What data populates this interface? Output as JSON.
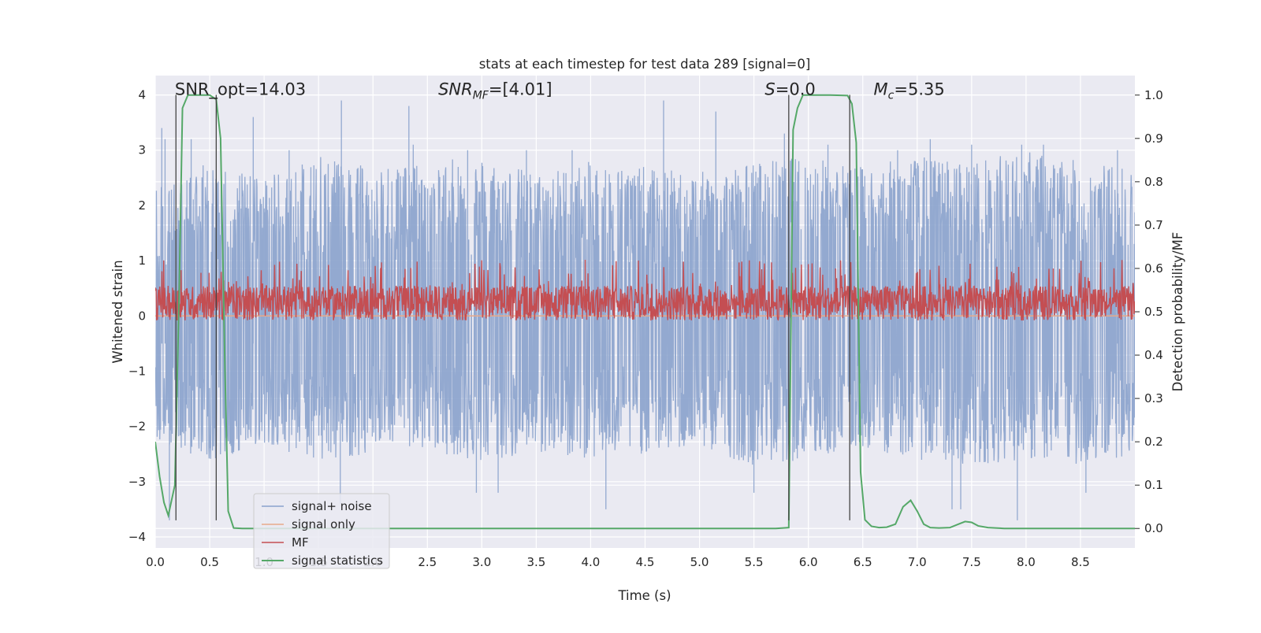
{
  "chart_data": {
    "type": "line",
    "title": "stats at each timestep for test data 289 [signal=0]",
    "xlabel": "Time (s)",
    "ylabel": "Whitened strain",
    "ylabel_right": "Detection probability/MF",
    "xlim": [
      0.0,
      9.0
    ],
    "ylim": [
      -4.2,
      4.35
    ],
    "ylim_right": [
      -0.045,
      1.045
    ],
    "xticks": [
      "0.0",
      "0.5",
      "1.0",
      "1.5",
      "2.0",
      "2.5",
      "3.0",
      "3.5",
      "4.0",
      "4.5",
      "5.0",
      "5.5",
      "6.0",
      "6.5",
      "7.0",
      "7.5",
      "8.0",
      "8.5"
    ],
    "yticks_left": [
      "4",
      "3",
      "2",
      "1",
      "0",
      "−1",
      "−2",
      "−3",
      "−4"
    ],
    "yticks_left_values": [
      4,
      3,
      2,
      1,
      0,
      -1,
      -2,
      -3,
      -4
    ],
    "yticks_right": [
      "1.0",
      "0.9",
      "0.8",
      "0.7",
      "0.6",
      "0.5",
      "0.4",
      "0.3",
      "0.2",
      "0.1",
      "0.0"
    ],
    "yticks_right_values": [
      1.0,
      0.9,
      0.8,
      0.7,
      0.6,
      0.5,
      0.4,
      0.3,
      0.2,
      0.1,
      0.0
    ],
    "grid": true,
    "legend_placement": "lower-left",
    "annotations": [
      {
        "id": "snr-opt",
        "x": 0.18,
        "text": "SNR_opt=14.03"
      },
      {
        "id": "snr-mf",
        "x": 2.6,
        "text": "SNR_MF=[4.01]"
      },
      {
        "id": "s-value",
        "x": 5.6,
        "text": "S=0.0"
      },
      {
        "id": "mc-value",
        "x": 6.6,
        "text": "M_c=5.35"
      }
    ],
    "vertical_lines": [
      {
        "x": 0.19,
        "y": [
          -3.7,
          4.0
        ]
      },
      {
        "x": 0.56,
        "y": [
          -3.7,
          4.0
        ]
      },
      {
        "x": 5.82,
        "y": [
          -3.7,
          4.0
        ]
      },
      {
        "x": 6.38,
        "y": [
          -3.7,
          4.0
        ]
      }
    ],
    "series": [
      {
        "name": "signal+ noise",
        "axis": "left",
        "color": "#8aa2cc",
        "style": "dense noise trace, symmetric around 0",
        "envelope_upper": [
          [
            0.0,
            2.3
          ],
          [
            0.5,
            2.8
          ],
          [
            1.0,
            2.5
          ],
          [
            1.5,
            2.9
          ],
          [
            2.0,
            2.7
          ],
          [
            2.5,
            2.8
          ],
          [
            3.0,
            2.9
          ],
          [
            3.5,
            2.6
          ],
          [
            4.0,
            2.8
          ],
          [
            4.5,
            2.7
          ],
          [
            5.0,
            2.6
          ],
          [
            5.5,
            2.8
          ],
          [
            6.0,
            2.9
          ],
          [
            6.5,
            2.7
          ],
          [
            7.0,
            2.9
          ],
          [
            7.5,
            2.8
          ],
          [
            8.0,
            3.0
          ],
          [
            8.5,
            2.8
          ],
          [
            9.0,
            2.7
          ]
        ],
        "envelope_lower": [
          [
            0.0,
            -2.3
          ],
          [
            0.5,
            -2.6
          ],
          [
            1.0,
            -2.4
          ],
          [
            1.5,
            -2.6
          ],
          [
            2.0,
            -2.5
          ],
          [
            2.5,
            -2.4
          ],
          [
            3.0,
            -2.7
          ],
          [
            3.5,
            -2.5
          ],
          [
            4.0,
            -2.6
          ],
          [
            4.5,
            -2.5
          ],
          [
            5.0,
            -2.4
          ],
          [
            5.5,
            -2.7
          ],
          [
            6.0,
            -2.6
          ],
          [
            6.5,
            -2.4
          ],
          [
            7.0,
            -2.6
          ],
          [
            7.5,
            -2.7
          ],
          [
            8.0,
            -2.6
          ],
          [
            8.5,
            -2.7
          ],
          [
            9.0,
            -2.5
          ]
        ],
        "peaks": [
          [
            0.06,
            3.4
          ],
          [
            0.09,
            3.2
          ],
          [
            0.33,
            3.2
          ],
          [
            0.9,
            3.6
          ],
          [
            1.23,
            3.0
          ],
          [
            1.71,
            3.9
          ],
          [
            2.33,
            3.8
          ],
          [
            2.37,
            3.1
          ],
          [
            2.87,
            3.0
          ],
          [
            3.41,
            3.0
          ],
          [
            3.83,
            3.0
          ],
          [
            4.67,
            3.9
          ],
          [
            5.15,
            3.7
          ],
          [
            5.78,
            3.3
          ],
          [
            6.18,
            3.1
          ],
          [
            6.82,
            3.0
          ],
          [
            7.12,
            3.2
          ],
          [
            7.5,
            3.1
          ],
          [
            7.96,
            3.1
          ],
          [
            8.16,
            3.1
          ],
          [
            8.84,
            3.0
          ],
          [
            0.13,
            -3.7
          ],
          [
            1.7,
            -3.4
          ],
          [
            2.95,
            -3.2
          ],
          [
            3.15,
            -3.2
          ],
          [
            4.14,
            -3.5
          ],
          [
            5.5,
            -3.2
          ],
          [
            7.32,
            -3.5
          ],
          [
            7.4,
            -3.5
          ],
          [
            7.92,
            -3.7
          ],
          [
            8.55,
            -3.2
          ]
        ]
      },
      {
        "name": "signal only",
        "axis": "left",
        "color": "#e8a98a",
        "values": [
          [
            0.0,
            0.0
          ],
          [
            9.0,
            0.0
          ]
        ]
      },
      {
        "name": "MF",
        "axis": "right",
        "color": "#c44e52",
        "style": "dense noisy trace",
        "mean": 0.52,
        "range": [
          0.48,
          0.62
        ],
        "peaks": [
          [
            3.95,
            0.62
          ],
          [
            6.0,
            0.61
          ],
          [
            8.25,
            0.6
          ],
          [
            0.42,
            0.59
          ],
          [
            6.25,
            0.6
          ]
        ]
      },
      {
        "name": "signal statistics",
        "axis": "right",
        "color": "#55a868",
        "values": [
          [
            0.0,
            0.2
          ],
          [
            0.04,
            0.12
          ],
          [
            0.08,
            0.06
          ],
          [
            0.12,
            0.03
          ],
          [
            0.18,
            0.1
          ],
          [
            0.22,
            0.55
          ],
          [
            0.25,
            0.97
          ],
          [
            0.3,
            1.0
          ],
          [
            0.36,
            1.0
          ],
          [
            0.42,
            1.0
          ],
          [
            0.5,
            1.0
          ],
          [
            0.56,
            0.99
          ],
          [
            0.6,
            0.9
          ],
          [
            0.64,
            0.37
          ],
          [
            0.67,
            0.04
          ],
          [
            0.72,
            0.001
          ],
          [
            0.8,
            0.0
          ],
          [
            1.0,
            0.0
          ],
          [
            2.0,
            0.0
          ],
          [
            3.0,
            0.0
          ],
          [
            4.0,
            0.0
          ],
          [
            5.0,
            0.0
          ],
          [
            5.7,
            0.0
          ],
          [
            5.82,
            0.002
          ],
          [
            5.86,
            0.92
          ],
          [
            5.9,
            0.97
          ],
          [
            5.95,
            1.0
          ],
          [
            6.0,
            1.0
          ],
          [
            6.2,
            1.0
          ],
          [
            6.36,
            0.999
          ],
          [
            6.4,
            0.98
          ],
          [
            6.44,
            0.89
          ],
          [
            6.48,
            0.13
          ],
          [
            6.52,
            0.02
          ],
          [
            6.58,
            0.005
          ],
          [
            6.65,
            0.002
          ],
          [
            6.72,
            0.003
          ],
          [
            6.8,
            0.01
          ],
          [
            6.87,
            0.05
          ],
          [
            6.94,
            0.065
          ],
          [
            7.0,
            0.04
          ],
          [
            7.06,
            0.01
          ],
          [
            7.12,
            0.002
          ],
          [
            7.2,
            0.001
          ],
          [
            7.3,
            0.002
          ],
          [
            7.38,
            0.01
          ],
          [
            7.44,
            0.016
          ],
          [
            7.5,
            0.014
          ],
          [
            7.56,
            0.006
          ],
          [
            7.65,
            0.002
          ],
          [
            7.8,
            0.0
          ],
          [
            9.0,
            0.0
          ]
        ]
      }
    ]
  }
}
